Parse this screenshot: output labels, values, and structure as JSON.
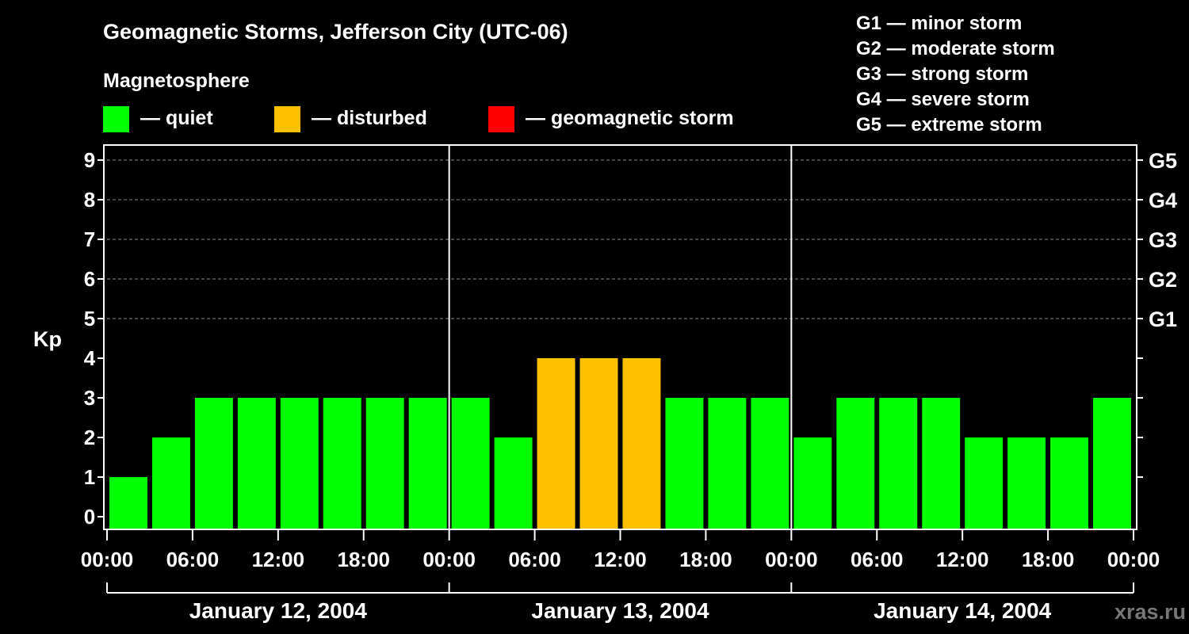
{
  "chart_data": {
    "type": "bar",
    "title": "Geomagnetic Storms, Jefferson City (UTC-06)",
    "legend_title": "Magnetosphere",
    "legend": [
      {
        "label": "— quiet",
        "color": "#00ff00"
      },
      {
        "label": "— disturbed",
        "color": "#ffc000"
      },
      {
        "label": "— geomagnetic storm",
        "color": "#ff0000"
      }
    ],
    "storm_scale": [
      "G1 — minor storm",
      "G2 — moderate storm",
      "G3 — strong storm",
      "G4 — severe storm",
      "G5 — extreme storm"
    ],
    "ylabel": "Kp",
    "ylim": [
      0,
      9
    ],
    "y_ticks": [
      0,
      1,
      2,
      3,
      4,
      5,
      6,
      7,
      8,
      9
    ],
    "right_ticks": [
      {
        "kp": 5,
        "label": "G1"
      },
      {
        "kp": 6,
        "label": "G2"
      },
      {
        "kp": 7,
        "label": "G3"
      },
      {
        "kp": 8,
        "label": "G4"
      },
      {
        "kp": 9,
        "label": "G5"
      }
    ],
    "x_tick_labels": [
      "00:00",
      "06:00",
      "12:00",
      "18:00",
      "00:00",
      "06:00",
      "12:00",
      "18:00",
      "00:00",
      "06:00",
      "12:00",
      "18:00",
      "00:00"
    ],
    "days": [
      "January 12, 2004",
      "January 13, 2004",
      "January 14, 2004"
    ],
    "interval_hours": 3,
    "values": [
      1,
      2,
      3,
      3,
      3,
      3,
      3,
      3,
      3,
      2,
      4,
      4,
      4,
      3,
      3,
      3,
      2,
      3,
      3,
      3,
      2,
      2,
      2,
      3
    ],
    "colors": {
      "quiet": "#00ff00",
      "disturbed": "#ffc000",
      "storm": "#ff0000"
    },
    "grid": true
  },
  "watermark": "xras.ru"
}
